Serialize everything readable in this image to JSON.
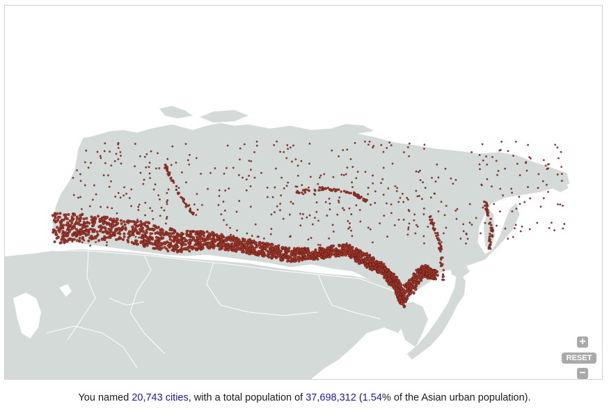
{
  "map": {
    "region": "Asia",
    "land_color": "#d4dad7",
    "border_color": "#ffffff",
    "water_color": "#ffffff",
    "city_fill": "#a5382a",
    "city_stroke": "#4a1410"
  },
  "controls": {
    "zoom_in_icon": "plus-icon",
    "zoom_in_label": "+",
    "reset_label": "RESET",
    "zoom_out_icon": "minus-icon",
    "zoom_out_label": "−"
  },
  "summary": {
    "prefix": "You named ",
    "city_count": "20,743 cities",
    "middle": ", with a total population of ",
    "population": "37,698,312",
    "paren_open": " (",
    "percent": "1.54",
    "suffix": "% of the Asian urban population)."
  }
}
